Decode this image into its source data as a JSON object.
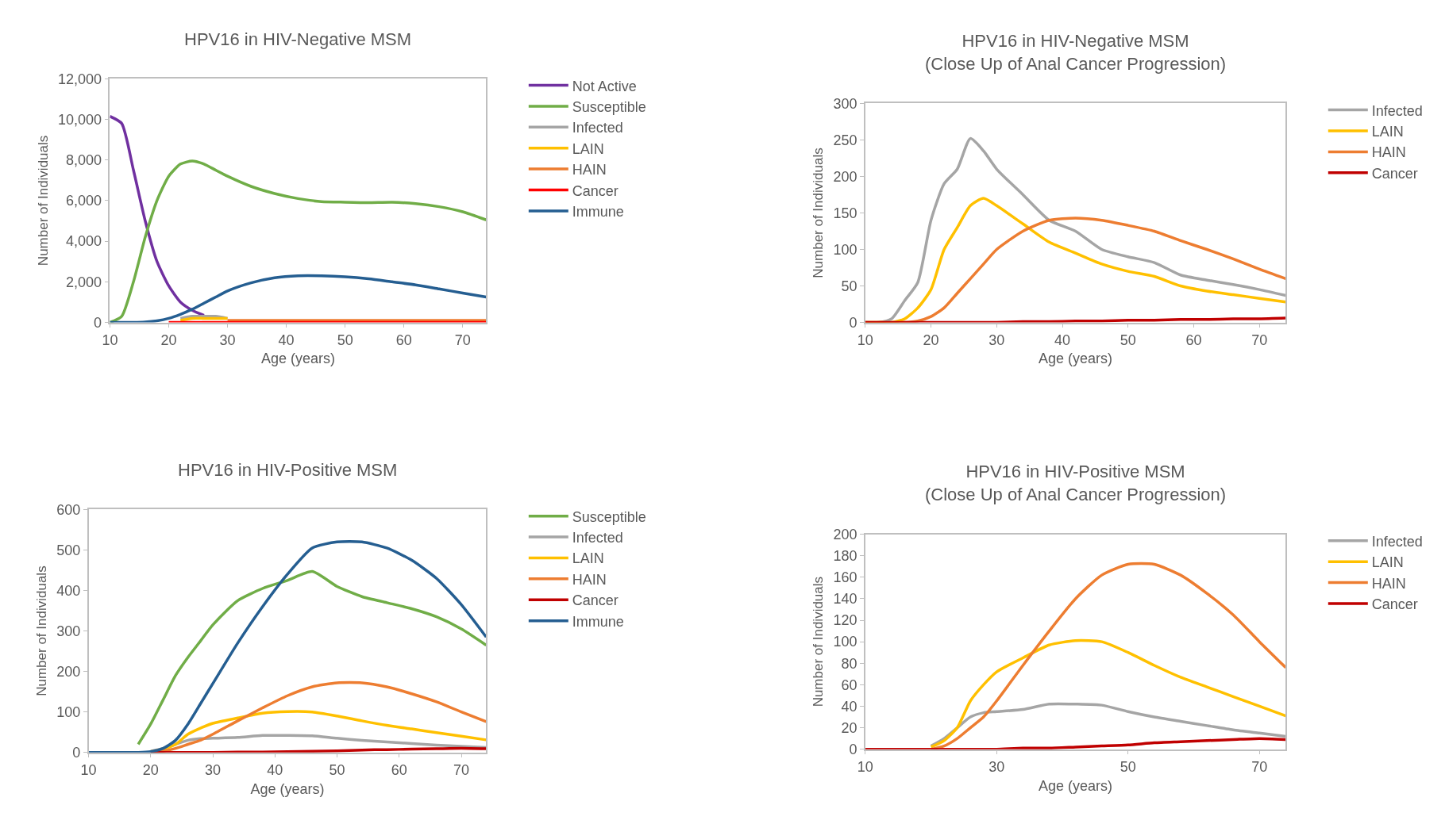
{
  "chart_data": [
    {
      "type": "line",
      "title": "HPV16 in HIV-Negative MSM",
      "xlabel": "Age (years)",
      "ylabel": "Number of Individuals",
      "legend": "right",
      "grid": false,
      "marker": "none",
      "line_style": "solid",
      "x": [
        10,
        12,
        14,
        16,
        18,
        20,
        22,
        24,
        26,
        28,
        30,
        34,
        38,
        42,
        46,
        50,
        54,
        58,
        62,
        66,
        70,
        74
      ],
      "xlim": [
        10,
        74
      ],
      "xticks": [
        10,
        20,
        30,
        40,
        50,
        60,
        70
      ],
      "ylim": [
        0,
        12000
      ],
      "yticks": [
        {
          "value": 0,
          "label": "0"
        },
        {
          "value": 2000,
          "label": "2,000"
        },
        {
          "value": 4000,
          "label": "4,000"
        },
        {
          "value": 6000,
          "label": "6,000"
        },
        {
          "value": 8000,
          "label": "8,000"
        },
        {
          "value": 10000,
          "label": "10,000"
        },
        {
          "value": 12000,
          "label": "12,000"
        }
      ],
      "series": [
        {
          "name": "Not Active",
          "color": "#7030a0",
          "values": [
            10150,
            9800,
            7500,
            5000,
            3000,
            1800,
            1000,
            600,
            350,
            null,
            null,
            null,
            null,
            null,
            null,
            null,
            null,
            null,
            null,
            null,
            null,
            null
          ]
        },
        {
          "name": "Susceptible",
          "color": "#70ad47",
          "values": [
            0,
            300,
            2000,
            4200,
            6000,
            7200,
            7800,
            7950,
            7800,
            7500,
            7200,
            6700,
            6350,
            6100,
            5950,
            5920,
            5900,
            5920,
            5850,
            5700,
            5450,
            5050
          ]
        },
        {
          "name": "Infected",
          "color": "#a5a5a5",
          "values": [
            null,
            null,
            null,
            null,
            null,
            null,
            200,
            300,
            300,
            300,
            200,
            null,
            null,
            null,
            null,
            null,
            null,
            null,
            null,
            null,
            null,
            null
          ]
        },
        {
          "name": "LAIN",
          "color": "#ffc000",
          "values": [
            null,
            null,
            null,
            null,
            null,
            null,
            100,
            200,
            200,
            200,
            200,
            null,
            null,
            null,
            null,
            null,
            null,
            null,
            null,
            null,
            null,
            null
          ]
        },
        {
          "name": "HAIN",
          "color": "#ed7d31",
          "values": [
            null,
            null,
            null,
            null,
            null,
            null,
            null,
            null,
            null,
            null,
            100,
            100,
            100,
            100,
            100,
            100,
            100,
            100,
            100,
            100,
            100,
            100
          ]
        },
        {
          "name": "Cancer",
          "color": "#ff0000",
          "values": [
            null,
            null,
            null,
            null,
            null,
            0,
            0,
            0,
            0,
            0,
            0,
            0,
            0,
            0,
            0,
            0,
            0,
            0,
            0,
            0,
            0,
            0
          ]
        },
        {
          "name": "Immune",
          "color": "#255e91",
          "values": [
            0,
            0,
            0,
            20,
            80,
            200,
            400,
            650,
            950,
            1250,
            1550,
            1950,
            2200,
            2300,
            2300,
            2250,
            2150,
            2000,
            1850,
            1650,
            1450,
            1250
          ]
        }
      ]
    },
    {
      "type": "line",
      "title": "HPV16 in HIV-Negative MSM\n(Close Up of Anal Cancer Progression)",
      "xlabel": "Age (years)",
      "ylabel": "Number of Individuals",
      "legend": "right",
      "grid": false,
      "marker": "none",
      "line_style": "solid",
      "x": [
        10,
        12,
        14,
        16,
        18,
        20,
        22,
        24,
        26,
        28,
        30,
        34,
        38,
        42,
        46,
        50,
        54,
        58,
        62,
        66,
        70,
        74
      ],
      "xlim": [
        10,
        74
      ],
      "xticks": [
        10,
        20,
        30,
        40,
        50,
        60,
        70
      ],
      "ylim": [
        0,
        300
      ],
      "yticks": [
        0,
        50,
        100,
        150,
        200,
        250,
        300
      ],
      "series": [
        {
          "name": "Infected",
          "color": "#a5a5a5",
          "values": [
            0,
            0,
            5,
            30,
            55,
            140,
            190,
            210,
            252,
            235,
            210,
            175,
            140,
            125,
            100,
            90,
            82,
            65,
            58,
            52,
            45,
            37
          ]
        },
        {
          "name": "LAIN",
          "color": "#ffc000",
          "values": [
            0,
            0,
            0,
            5,
            20,
            45,
            100,
            130,
            160,
            170,
            160,
            135,
            110,
            95,
            80,
            70,
            63,
            50,
            43,
            38,
            33,
            28
          ]
        },
        {
          "name": "HAIN",
          "color": "#ed7d31",
          "values": [
            0,
            0,
            0,
            0,
            2,
            8,
            20,
            40,
            60,
            80,
            100,
            125,
            140,
            143,
            140,
            133,
            125,
            112,
            100,
            87,
            73,
            60
          ]
        },
        {
          "name": "Cancer",
          "color": "#c00000",
          "values": [
            0,
            0,
            0,
            0,
            0,
            0,
            0,
            0,
            0,
            0,
            0,
            1,
            1,
            2,
            2,
            3,
            3,
            4,
            4,
            5,
            5,
            6
          ]
        }
      ]
    },
    {
      "type": "line",
      "title": "HPV16 in HIV-Positive MSM",
      "xlabel": "Age (years)",
      "ylabel": "Number of Individuals",
      "legend": "right",
      "grid": false,
      "marker": "none",
      "line_style": "solid",
      "x": [
        10,
        12,
        14,
        16,
        18,
        20,
        22,
        24,
        26,
        28,
        30,
        34,
        38,
        42,
        46,
        50,
        54,
        58,
        62,
        66,
        70,
        74
      ],
      "xlim": [
        10,
        74
      ],
      "xticks": [
        10,
        20,
        30,
        40,
        50,
        60,
        70
      ],
      "ylim": [
        0,
        600
      ],
      "yticks": [
        0,
        100,
        200,
        300,
        400,
        500,
        600
      ],
      "series": [
        {
          "name": "Susceptible",
          "color": "#70ad47",
          "values": [
            null,
            null,
            null,
            null,
            20,
            70,
            130,
            190,
            235,
            275,
            315,
            375,
            405,
            425,
            447,
            410,
            385,
            370,
            355,
            335,
            305,
            265
          ]
        },
        {
          "name": "Infected",
          "color": "#a5a5a5",
          "values": [
            null,
            null,
            null,
            null,
            null,
            3,
            10,
            20,
            30,
            34,
            35,
            37,
            42,
            42,
            41,
            35,
            30,
            26,
            22,
            18,
            15,
            12
          ]
        },
        {
          "name": "LAIN",
          "color": "#ffc000",
          "values": [
            null,
            null,
            null,
            null,
            null,
            2,
            8,
            20,
            45,
            60,
            72,
            85,
            97,
            101,
            100,
            90,
            78,
            67,
            58,
            49,
            40,
            31
          ]
        },
        {
          "name": "HAIN",
          "color": "#ed7d31",
          "values": [
            null,
            null,
            null,
            null,
            null,
            0,
            3,
            10,
            20,
            30,
            45,
            78,
            110,
            140,
            162,
            172,
            172,
            162,
            145,
            125,
            100,
            76
          ]
        },
        {
          "name": "Cancer",
          "color": "#c00000",
          "values": [
            null,
            null,
            null,
            null,
            null,
            0,
            0,
            0,
            0,
            0,
            0,
            1,
            1,
            2,
            3,
            4,
            6,
            7,
            8,
            9,
            10,
            9
          ]
        },
        {
          "name": "Immune",
          "color": "#255e91",
          "values": [
            0,
            0,
            0,
            0,
            0,
            2,
            10,
            30,
            70,
            120,
            170,
            270,
            360,
            440,
            505,
            520,
            520,
            505,
            475,
            430,
            365,
            285
          ]
        }
      ]
    },
    {
      "type": "line",
      "title": "HPV16 in HIV-Positive MSM\n(Close Up of Anal Cancer Progression)",
      "xlabel": "Age (years)",
      "ylabel": "Number of Individuals",
      "legend": "right",
      "grid": false,
      "marker": "none",
      "line_style": "solid",
      "x": [
        10,
        12,
        14,
        16,
        18,
        20,
        22,
        24,
        26,
        28,
        30,
        34,
        38,
        42,
        46,
        50,
        54,
        58,
        62,
        66,
        70,
        74
      ],
      "xlim": [
        10,
        74
      ],
      "xticks": [
        10,
        30,
        50,
        70
      ],
      "ylim": [
        0,
        200
      ],
      "yticks": [
        0,
        20,
        40,
        60,
        80,
        100,
        120,
        140,
        160,
        180,
        200
      ],
      "series": [
        {
          "name": "Infected",
          "color": "#a5a5a5",
          "values": [
            null,
            null,
            null,
            null,
            null,
            3,
            10,
            20,
            30,
            34,
            35,
            37,
            42,
            42,
            41,
            35,
            30,
            26,
            22,
            18,
            15,
            12
          ]
        },
        {
          "name": "LAIN",
          "color": "#ffc000",
          "values": [
            null,
            null,
            null,
            null,
            null,
            2,
            8,
            20,
            45,
            60,
            72,
            85,
            97,
            101,
            100,
            90,
            78,
            67,
            58,
            49,
            40,
            31
          ]
        },
        {
          "name": "HAIN",
          "color": "#ed7d31",
          "values": [
            null,
            null,
            null,
            null,
            null,
            0,
            3,
            10,
            20,
            30,
            45,
            78,
            110,
            140,
            162,
            172,
            172,
            162,
            145,
            125,
            100,
            76
          ]
        },
        {
          "name": "Cancer",
          "color": "#c00000",
          "values": [
            0,
            0,
            0,
            0,
            0,
            0,
            0,
            0,
            0,
            0,
            0,
            1,
            1,
            2,
            3,
            4,
            6,
            7,
            8,
            9,
            10,
            9
          ]
        }
      ]
    }
  ]
}
